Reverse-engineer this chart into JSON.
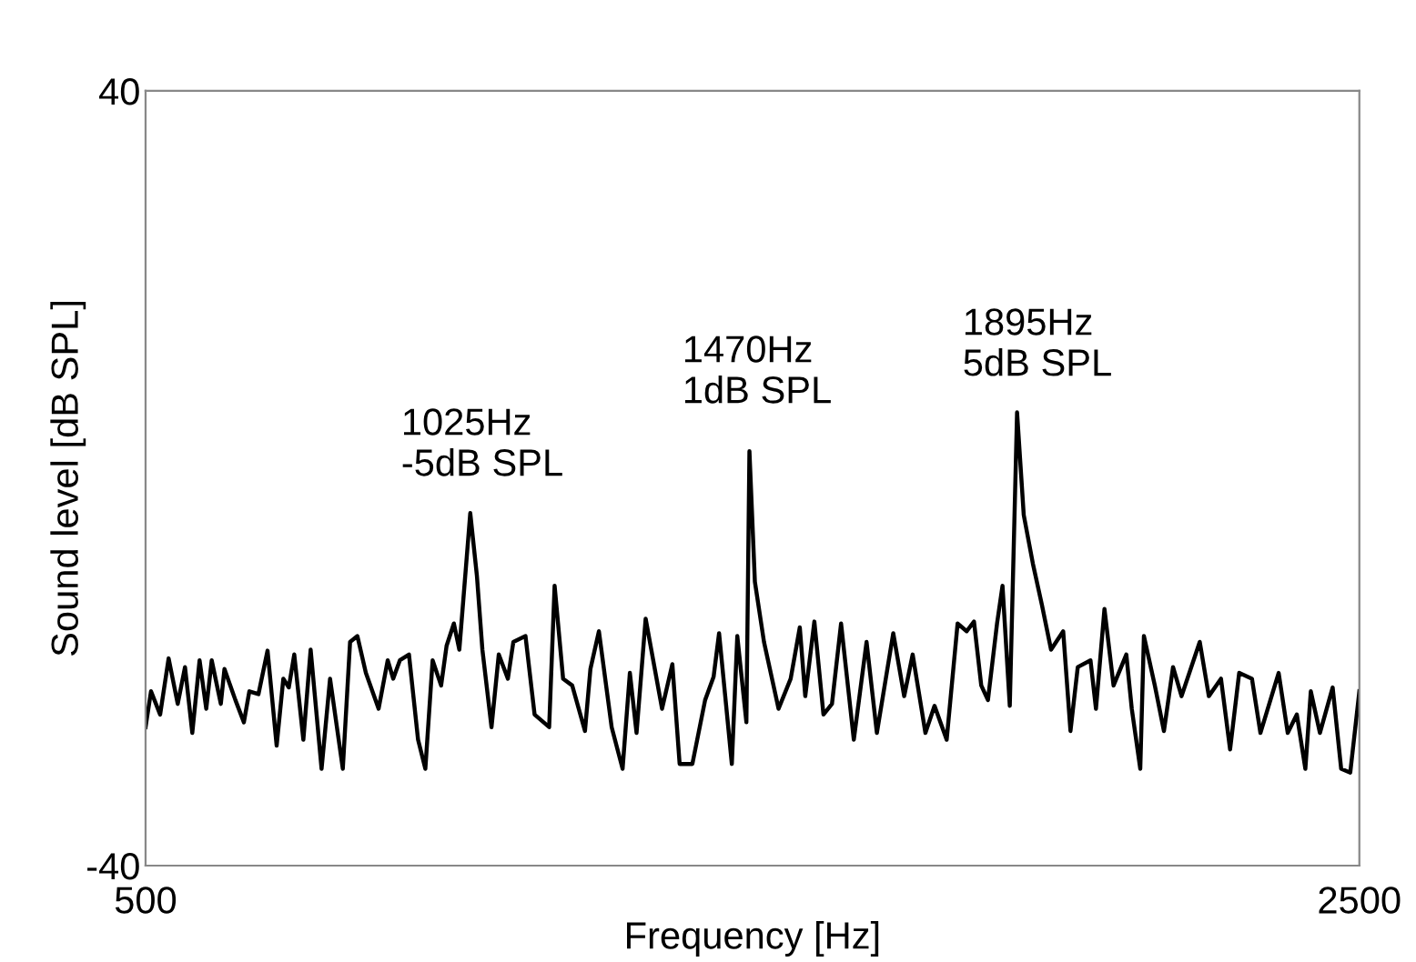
{
  "chart_data": {
    "type": "line",
    "xlabel": "Frequency [Hz]",
    "ylabel": "Sound level [dB SPL]",
    "xlim": [
      500,
      2500
    ],
    "xticks": [
      500,
      2500
    ],
    "ylim": [
      -40,
      40
    ],
    "yticks": [
      -40,
      40
    ],
    "grid": false,
    "marker": "none",
    "line_style": "solid",
    "x": [
      500,
      509,
      524,
      538,
      553,
      565,
      577,
      589,
      600,
      609,
      624,
      630,
      648,
      662,
      671,
      686,
      701,
      716,
      727,
      736,
      745,
      760,
      772,
      790,
      804,
      825,
      837,
      849,
      863,
      884,
      899,
      908,
      919,
      934,
      949,
      961,
      973,
      987,
      996,
      1008,
      1017,
      1035,
      1046,
      1055,
      1070,
      1082,
      1097,
      1106,
      1126,
      1141,
      1165,
      1174,
      1188,
      1203,
      1224,
      1233,
      1247,
      1268,
      1286,
      1298,
      1309,
      1324,
      1351,
      1368,
      1380,
      1401,
      1422,
      1436,
      1445,
      1466,
      1475,
      1490,
      1495,
      1504,
      1519,
      1543,
      1563,
      1578,
      1587,
      1602,
      1617,
      1631,
      1646,
      1667,
      1688,
      1705,
      1732,
      1750,
      1764,
      1785,
      1800,
      1820,
      1838,
      1853,
      1865,
      1877,
      1888,
      1903,
      1912,
      1924,
      1936,
      1947,
      1962,
      1977,
      1992,
      2012,
      2024,
      2036,
      2057,
      2066,
      2080,
      2095,
      2116,
      2125,
      2139,
      2145,
      2163,
      2178,
      2193,
      2207,
      2237,
      2252,
      2272,
      2287,
      2302,
      2323,
      2337,
      2367,
      2382,
      2397,
      2411,
      2420,
      2435,
      2456,
      2470,
      2485,
      2500
    ],
    "series": [
      {
        "color": "#000000",
        "values": [
          -25.7,
          -22.0,
          -24.4,
          -18.6,
          -23.3,
          -19.5,
          -26.3,
          -18.8,
          -23.8,
          -18.8,
          -23.3,
          -19.7,
          -22.9,
          -25.2,
          -22.0,
          -22.3,
          -17.8,
          -27.6,
          -20.7,
          -21.6,
          -18.2,
          -27.0,
          -17.7,
          -30.0,
          -20.7,
          -30.0,
          -16.9,
          -16.3,
          -20.1,
          -23.8,
          -18.8,
          -20.7,
          -18.8,
          -18.2,
          -27.0,
          -30.0,
          -18.8,
          -21.4,
          -17.3,
          -15.0,
          -17.7,
          -3.6,
          -10.1,
          -17.7,
          -25.7,
          -18.2,
          -20.7,
          -16.9,
          -16.3,
          -24.4,
          -25.7,
          -11.1,
          -20.7,
          -21.4,
          -26.1,
          -19.7,
          -15.8,
          -25.7,
          -30.0,
          -20.1,
          -26.3,
          -14.5,
          -23.8,
          -19.2,
          -29.5,
          -29.5,
          -22.9,
          -20.5,
          -16.0,
          -29.5,
          -16.3,
          -25.2,
          2.8,
          -10.7,
          -16.9,
          -23.8,
          -20.7,
          -15.4,
          -22.5,
          -14.8,
          -24.4,
          -23.3,
          -15.0,
          -27.0,
          -16.9,
          -26.3,
          -16.0,
          -22.5,
          -18.2,
          -26.3,
          -23.5,
          -27.0,
          -15.0,
          -15.8,
          -14.8,
          -21.4,
          -22.9,
          -15.0,
          -11.1,
          -23.5,
          6.8,
          -3.8,
          -8.8,
          -13.1,
          -17.7,
          -15.8,
          -26.1,
          -19.5,
          -18.8,
          -23.8,
          -13.5,
          -21.4,
          -18.2,
          -23.8,
          -30.0,
          -16.3,
          -21.4,
          -26.1,
          -19.5,
          -22.5,
          -16.9,
          -22.5,
          -20.7,
          -28.0,
          -20.1,
          -20.7,
          -26.3,
          -20.1,
          -26.3,
          -24.4,
          -30.0,
          -22.0,
          -26.3,
          -21.6,
          -30.0,
          -30.4,
          -22.0
        ]
      }
    ],
    "annotations": [
      "1025Hz\n-5dB SPL",
      "1470Hz\n1dB SPL",
      "1895Hz\n5dB SPL"
    ]
  }
}
